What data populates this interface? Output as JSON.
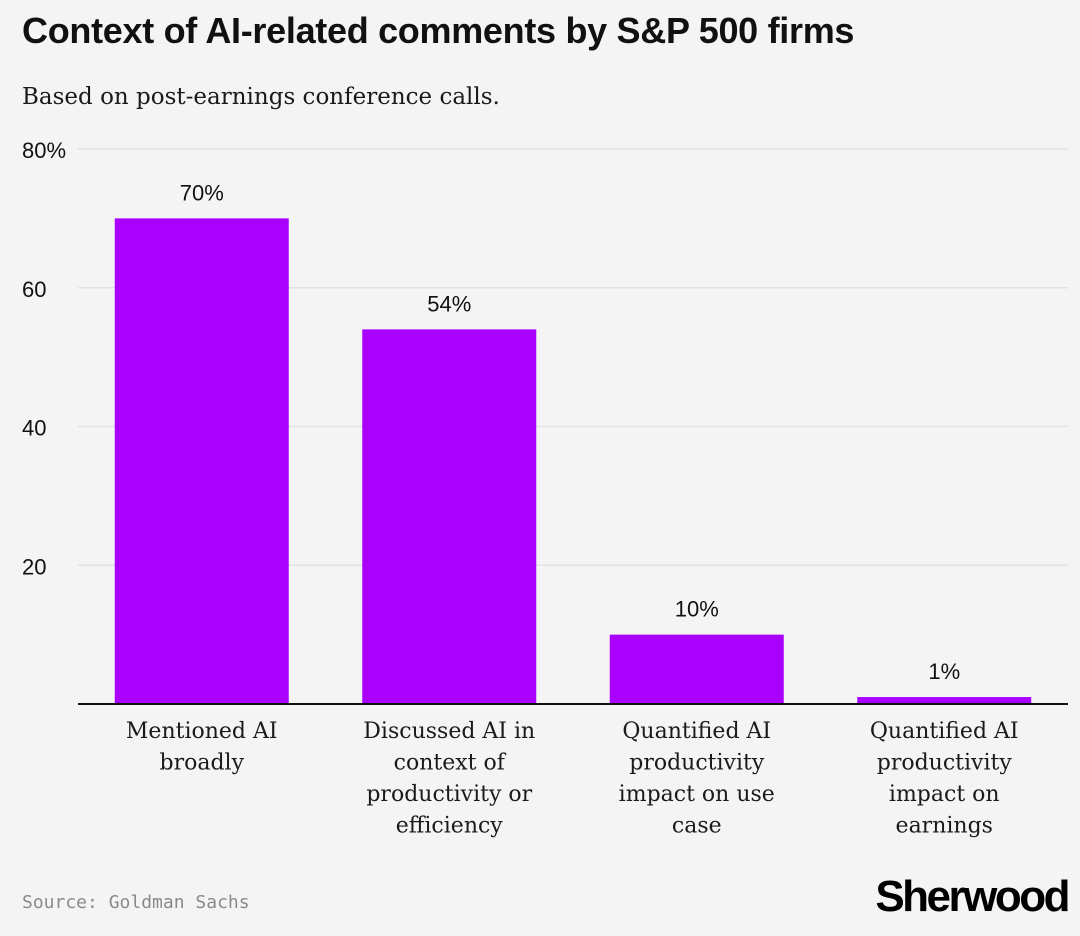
{
  "title": "Context of AI-related comments by S&P 500 firms",
  "subtitle": "Based on post-earnings conference calls.",
  "source": "Source: Goldman Sachs",
  "logo": "Sherwood",
  "colors": {
    "bar": "#aa00ff",
    "background": "#f4f4f4",
    "gridline": "#e2e2e2",
    "axis": "#111111"
  },
  "chart_data": {
    "type": "bar",
    "categories": [
      [
        "Mentioned AI",
        "broadly"
      ],
      [
        "Discussed AI in",
        "context of",
        "productivity or",
        "efficiency"
      ],
      [
        "Quantified AI",
        "productivity",
        "impact on use",
        "case"
      ],
      [
        "Quantified AI",
        "productivity",
        "impact on",
        "earnings"
      ]
    ],
    "values": [
      70,
      54,
      10,
      1
    ],
    "data_labels": [
      "70%",
      "54%",
      "10%",
      "1%"
    ],
    "yticks": [
      {
        "value": 20,
        "label": "20"
      },
      {
        "value": 40,
        "label": "40"
      },
      {
        "value": 60,
        "label": "60"
      },
      {
        "value": 80,
        "label": "80%"
      }
    ],
    "ylim": [
      0,
      80
    ],
    "grid": true,
    "legend": "none"
  }
}
